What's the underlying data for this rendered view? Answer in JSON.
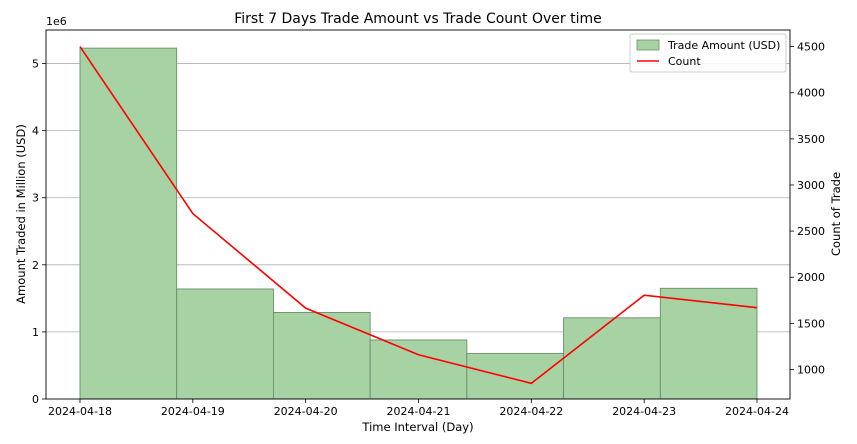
{
  "chart_data": {
    "type": "bar",
    "title": "First 7 Days Trade Amount vs Trade Count Over time",
    "xlabel": "Time Interval (Day)",
    "ylabel": "Amount Traded in Million (USD)",
    "y2label": "Count of Trade",
    "y_offset_text": "1e6",
    "x_ticks": [
      "2024-04-18",
      "2024-04-19",
      "2024-04-20",
      "2024-04-21",
      "2024-04-22",
      "2024-04-23",
      "2024-04-24"
    ],
    "y_ticks": [
      0,
      1,
      2,
      3,
      4,
      5
    ],
    "y2_ticks": [
      1000,
      1500,
      2000,
      2500,
      3000,
      3500,
      4000,
      4500
    ],
    "ylim": [
      0,
      5.5
    ],
    "y2lim": [
      680,
      4680
    ],
    "grid": "horizontal",
    "legend_position": "top-right",
    "colors": {
      "bar_fill": "#a6d2a4",
      "bar_edge": "#6b8f6b",
      "line": "#ff0000",
      "grid": "#b0b0b0"
    },
    "series": [
      {
        "name": "Trade Amount (USD)",
        "type": "bar",
        "axis": "left",
        "bins": [
          {
            "start": "2024-04-18",
            "end": "2024-04-18 20:34",
            "value": 5.23
          },
          {
            "start": "2024-04-18 20:34",
            "end": "2024-04-19 17:09",
            "value": 1.64
          },
          {
            "start": "2024-04-19 17:09",
            "end": "2024-04-20 13:43",
            "value": 1.29
          },
          {
            "start": "2024-04-20 13:43",
            "end": "2024-04-21 10:17",
            "value": 0.88
          },
          {
            "start": "2024-04-21 10:17",
            "end": "2024-04-22 06:51",
            "value": 0.68
          },
          {
            "start": "2024-04-22 06:51",
            "end": "2024-04-23 03:26",
            "value": 1.21
          },
          {
            "start": "2024-04-23 03:26",
            "end": "2024-04-24",
            "value": 1.65
          }
        ]
      },
      {
        "name": "Count",
        "type": "line",
        "axis": "right",
        "x": [
          "2024-04-18",
          "2024-04-19",
          "2024-04-20",
          "2024-04-21",
          "2024-04-22",
          "2024-04-23",
          "2024-04-24"
        ],
        "values": [
          4500,
          2690,
          1665,
          1160,
          850,
          1805,
          1670
        ]
      }
    ]
  }
}
